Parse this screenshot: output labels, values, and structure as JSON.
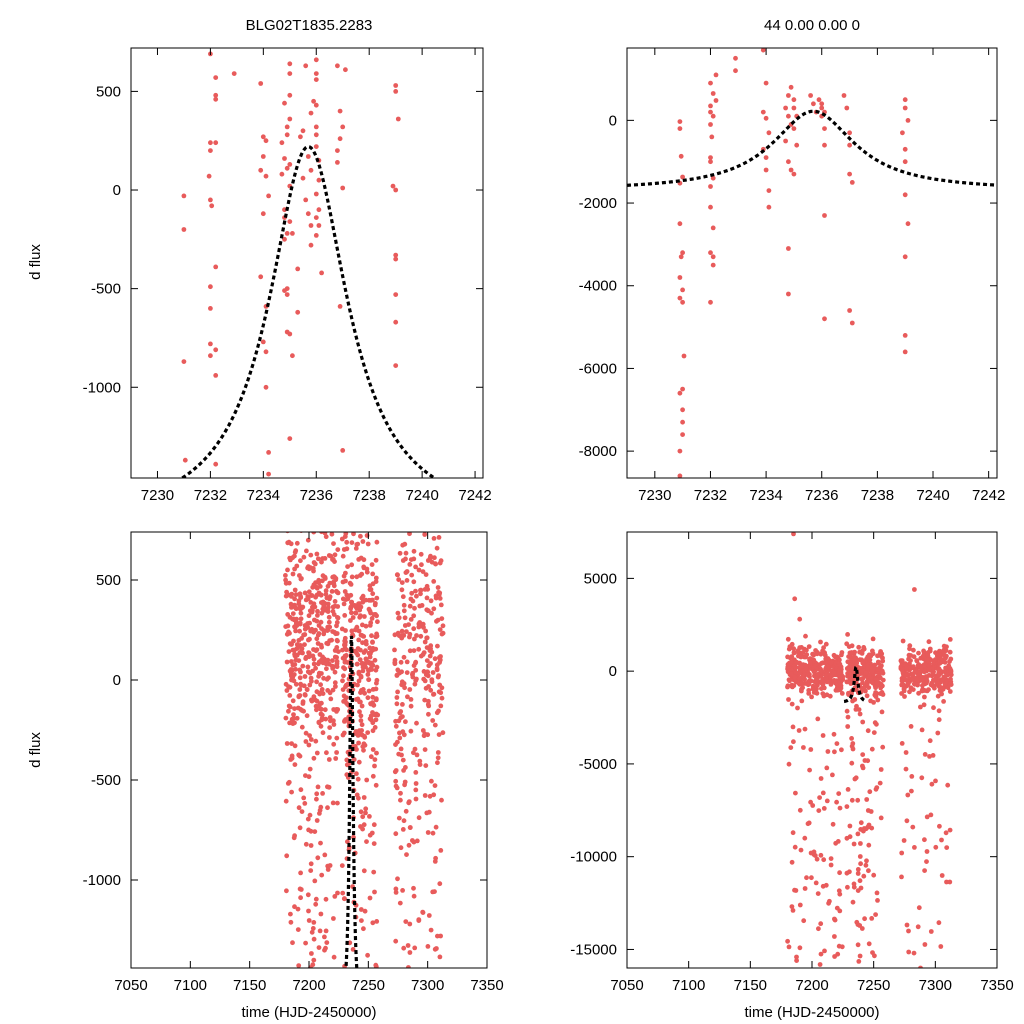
{
  "figure": {
    "left_title": "BLG02T1835.2283",
    "right_title": "44  0.00  0.00  0",
    "xlabel": "time (HJD-2450000)",
    "ylabel": "d flux"
  },
  "colors": {
    "points": "#e85b5b",
    "model": "#000000"
  },
  "chart_data": [
    {
      "id": "top-left",
      "type": "scatter",
      "xlim": [
        7229,
        7242.3
      ],
      "ylim": [
        -1460,
        720
      ],
      "xticks": [
        7230,
        7232,
        7234,
        7236,
        7238,
        7240,
        7242
      ],
      "yticks": [
        500,
        0,
        -500,
        -1000
      ],
      "model": {
        "t0": 7235.7,
        "peak": 220,
        "base": -1700,
        "width": 1.8
      },
      "points": [
        [
          7231.0,
          -30
        ],
        [
          7231.0,
          -200
        ],
        [
          7231.0,
          -870
        ],
        [
          7231.05,
          -1370
        ],
        [
          7232.0,
          690
        ],
        [
          7232.2,
          570
        ],
        [
          7232.2,
          480
        ],
        [
          7232.2,
          460
        ],
        [
          7232.0,
          240
        ],
        [
          7232.2,
          240
        ],
        [
          7232.0,
          200
        ],
        [
          7231.95,
          70
        ],
        [
          7232.0,
          -50
        ],
        [
          7232.05,
          -80
        ],
        [
          7232.2,
          -390
        ],
        [
          7232.0,
          -490
        ],
        [
          7232.0,
          -600
        ],
        [
          7232.0,
          -780
        ],
        [
          7232.2,
          -810
        ],
        [
          7232.0,
          -840
        ],
        [
          7232.2,
          -940
        ],
        [
          7232.2,
          -1390
        ],
        [
          7232.9,
          590
        ],
        [
          7233.9,
          540
        ],
        [
          7234.0,
          270
        ],
        [
          7234.1,
          250
        ],
        [
          7234.0,
          170
        ],
        [
          7233.9,
          100
        ],
        [
          7234.1,
          70
        ],
        [
          7234.2,
          -30
        ],
        [
          7234.0,
          -120
        ],
        [
          7233.9,
          -440
        ],
        [
          7234.1,
          -590
        ],
        [
          7234.0,
          -770
        ],
        [
          7234.1,
          -820
        ],
        [
          7234.1,
          -1000
        ],
        [
          7234.2,
          -1330
        ],
        [
          7234.2,
          -1440
        ],
        [
          7234.8,
          440
        ],
        [
          7234.9,
          320
        ],
        [
          7234.9,
          280
        ],
        [
          7234.7,
          240
        ],
        [
          7234.8,
          160
        ],
        [
          7234.9,
          110
        ],
        [
          7234.7,
          80
        ],
        [
          7234.8,
          -100
        ],
        [
          7234.8,
          -140
        ],
        [
          7234.9,
          -220
        ],
        [
          7234.8,
          -250
        ],
        [
          7234.9,
          -500
        ],
        [
          7234.8,
          -510
        ],
        [
          7234.9,
          -530
        ],
        [
          7234.9,
          -720
        ],
        [
          7235.0,
          -1260
        ],
        [
          7235.0,
          640
        ],
        [
          7235.0,
          590
        ],
        [
          7235.0,
          480
        ],
        [
          7235.0,
          360
        ],
        [
          7235.0,
          130
        ],
        [
          7235.0,
          20
        ],
        [
          7235.0,
          -160
        ],
        [
          7235.1,
          -220
        ],
        [
          7235.3,
          -400
        ],
        [
          7235.3,
          -620
        ],
        [
          7235.0,
          -730
        ],
        [
          7235.1,
          -840
        ],
        [
          7235.6,
          630
        ],
        [
          7235.8,
          390
        ],
        [
          7235.5,
          300
        ],
        [
          7235.4,
          270
        ],
        [
          7235.7,
          170
        ],
        [
          7235.8,
          100
        ],
        [
          7235.5,
          60
        ],
        [
          7235.6,
          -50
        ],
        [
          7235.7,
          -120
        ],
        [
          7235.8,
          -180
        ],
        [
          7235.8,
          -280
        ],
        [
          7236.0,
          660
        ],
        [
          7236.0,
          590
        ],
        [
          7236.0,
          560
        ],
        [
          7235.9,
          450
        ],
        [
          7236.0,
          430
        ],
        [
          7236.0,
          320
        ],
        [
          7236.0,
          280
        ],
        [
          7236.0,
          220
        ],
        [
          7236.1,
          150
        ],
        [
          7236.1,
          50
        ],
        [
          7236.0,
          -20
        ],
        [
          7236.1,
          -100
        ],
        [
          7236.0,
          -140
        ],
        [
          7236.1,
          -180
        ],
        [
          7236.0,
          -230
        ],
        [
          7236.2,
          -420
        ],
        [
          7236.8,
          630
        ],
        [
          7236.9,
          400
        ],
        [
          7237.0,
          320
        ],
        [
          7236.9,
          260
        ],
        [
          7236.8,
          200
        ],
        [
          7236.8,
          140
        ],
        [
          7237.0,
          10
        ],
        [
          7236.9,
          -590
        ],
        [
          7237.0,
          -1320
        ],
        [
          7237.1,
          610
        ],
        [
          7239.0,
          530
        ],
        [
          7239.0,
          500
        ],
        [
          7239.1,
          360
        ],
        [
          7238.9,
          20
        ],
        [
          7239.0,
          0
        ],
        [
          7239.0,
          -330
        ],
        [
          7239.0,
          -350
        ],
        [
          7239.0,
          -530
        ],
        [
          7239.0,
          -670
        ],
        [
          7239.0,
          -890
        ]
      ]
    },
    {
      "id": "top-right",
      "type": "scatter",
      "xlim": [
        7229,
        7242.3
      ],
      "ylim": [
        -8650,
        1750
      ],
      "xticks": [
        7230,
        7232,
        7234,
        7236,
        7238,
        7240,
        7242
      ],
      "yticks": [
        0,
        -2000,
        -4000,
        -6000,
        -8000
      ],
      "model": {
        "t0": 7235.7,
        "peak": 220,
        "base": -1700,
        "width": 1.8
      },
      "points": [
        [
          7230.9,
          -30
        ],
        [
          7230.9,
          -200
        ],
        [
          7230.95,
          -870
        ],
        [
          7231.0,
          -1370
        ],
        [
          7230.9,
          -1520
        ],
        [
          7230.9,
          -2500
        ],
        [
          7231.0,
          -3200
        ],
        [
          7230.95,
          -3300
        ],
        [
          7230.9,
          -3800
        ],
        [
          7231.0,
          -4100
        ],
        [
          7230.9,
          -4300
        ],
        [
          7231.0,
          -4400
        ],
        [
          7231.05,
          -5700
        ],
        [
          7231.0,
          -6500
        ],
        [
          7230.9,
          -6600
        ],
        [
          7231.0,
          -7000
        ],
        [
          7231.0,
          -7300
        ],
        [
          7231.0,
          -7600
        ],
        [
          7230.9,
          -8000
        ],
        [
          7230.9,
          -8600
        ],
        [
          7232.0,
          900
        ],
        [
          7232.1,
          650
        ],
        [
          7232.0,
          350
        ],
        [
          7232.2,
          480
        ],
        [
          7232.0,
          200
        ],
        [
          7232.1,
          100
        ],
        [
          7232.0,
          -100
        ],
        [
          7232.05,
          -400
        ],
        [
          7232.0,
          -900
        ],
        [
          7232.0,
          -1000
        ],
        [
          7232.1,
          -1400
        ],
        [
          7232.0,
          -1600
        ],
        [
          7232.0,
          -2100
        ],
        [
          7232.1,
          -2600
        ],
        [
          7232.0,
          -3200
        ],
        [
          7232.1,
          -3300
        ],
        [
          7232.1,
          -3500
        ],
        [
          7232.0,
          -4400
        ],
        [
          7232.2,
          1100
        ],
        [
          7232.9,
          1500
        ],
        [
          7232.9,
          1200
        ],
        [
          7233.9,
          1700
        ],
        [
          7233.9,
          200
        ],
        [
          7234.0,
          900
        ],
        [
          7234.0,
          50
        ],
        [
          7234.1,
          -300
        ],
        [
          7233.9,
          -700
        ],
        [
          7234.0,
          -900
        ],
        [
          7234.1,
          -1700
        ],
        [
          7234.1,
          -2100
        ],
        [
          7234.0,
          -1200
        ],
        [
          7234.7,
          300
        ],
        [
          7234.8,
          600
        ],
        [
          7234.9,
          800
        ],
        [
          7234.8,
          100
        ],
        [
          7234.9,
          -100
        ],
        [
          7234.7,
          -500
        ],
        [
          7234.8,
          -1000
        ],
        [
          7234.9,
          -1200
        ],
        [
          7234.8,
          -3100
        ],
        [
          7234.8,
          -4200
        ],
        [
          7235.0,
          500
        ],
        [
          7235.0,
          300
        ],
        [
          7235.1,
          100
        ],
        [
          7235.0,
          -200
        ],
        [
          7235.1,
          -600
        ],
        [
          7235.0,
          -1300
        ],
        [
          7235.6,
          600
        ],
        [
          7235.7,
          400
        ],
        [
          7235.8,
          200
        ],
        [
          7235.9,
          500
        ],
        [
          7236.0,
          400
        ],
        [
          7236.0,
          300
        ],
        [
          7236.1,
          200
        ],
        [
          7236.0,
          100
        ],
        [
          7236.1,
          -200
        ],
        [
          7236.1,
          -600
        ],
        [
          7236.1,
          -2300
        ],
        [
          7236.1,
          -4800
        ],
        [
          7236.8,
          600
        ],
        [
          7236.9,
          300
        ],
        [
          7237.0,
          -300
        ],
        [
          7237.0,
          -600
        ],
        [
          7237.0,
          -1300
        ],
        [
          7237.1,
          -1500
        ],
        [
          7237.0,
          -4600
        ],
        [
          7237.1,
          -4900
        ],
        [
          7239.0,
          500
        ],
        [
          7239.0,
          300
        ],
        [
          7239.1,
          0
        ],
        [
          7238.9,
          -300
        ],
        [
          7239.0,
          -700
        ],
        [
          7239.0,
          -1000
        ],
        [
          7239.0,
          -1800
        ],
        [
          7239.1,
          -2500
        ],
        [
          7239.0,
          -3300
        ],
        [
          7239.0,
          -5200
        ],
        [
          7239.0,
          -5600
        ]
      ]
    },
    {
      "id": "bottom-left",
      "type": "scatter",
      "xlim": [
        7050,
        7350
      ],
      "ylim": [
        -1440,
        740
      ],
      "xticks": [
        7050,
        7100,
        7150,
        7200,
        7250,
        7300,
        7350
      ],
      "yticks": [
        500,
        0,
        -500,
        -1000
      ],
      "model": {
        "t0": 7235.7,
        "peak": 220,
        "base": -1700,
        "width": 1.8,
        "xrange": [
          7226,
          7244
        ]
      },
      "clusters": [
        {
          "x0": 7180,
          "x1": 7225,
          "n": 520,
          "spread": 280,
          "center": 200,
          "outlier": 0.3
        },
        {
          "x0": 7228,
          "x1": 7258,
          "n": 360,
          "spread": 300,
          "center": 80,
          "outlier": 0.3
        },
        {
          "x0": 7272,
          "x1": 7313,
          "n": 320,
          "spread": 320,
          "center": 100,
          "outlier": 0.4
        }
      ]
    },
    {
      "id": "bottom-right",
      "type": "scatter",
      "xlim": [
        7050,
        7350
      ],
      "ylim": [
        -16000,
        7500
      ],
      "xticks": [
        7050,
        7100,
        7150,
        7200,
        7250,
        7300,
        7350
      ],
      "yticks": [
        5000,
        0,
        -5000,
        -10000,
        -15000
      ],
      "model": {
        "t0": 7235.7,
        "peak": 220,
        "base": -1700,
        "width": 1.8,
        "xrange": [
          7226,
          7244
        ]
      },
      "clusters": [
        {
          "x0": 7180,
          "x1": 7225,
          "n": 420,
          "spread": 600,
          "center": 0,
          "outlier": 0.25
        },
        {
          "x0": 7228,
          "x1": 7258,
          "n": 320,
          "spread": 700,
          "center": 0,
          "outlier": 0.3
        },
        {
          "x0": 7272,
          "x1": 7313,
          "n": 320,
          "spread": 650,
          "center": 0,
          "outlier": 0.2
        }
      ],
      "extra_points": [
        [
          7185,
          7400
        ],
        [
          7283,
          4400
        ],
        [
          7186,
          3900
        ],
        [
          7190,
          2800
        ],
        [
          7210,
          -7400
        ],
        [
          7250,
          -11000
        ],
        [
          7283,
          -9500
        ],
        [
          7305,
          -9100
        ],
        [
          7288,
          -16000
        ]
      ]
    }
  ]
}
